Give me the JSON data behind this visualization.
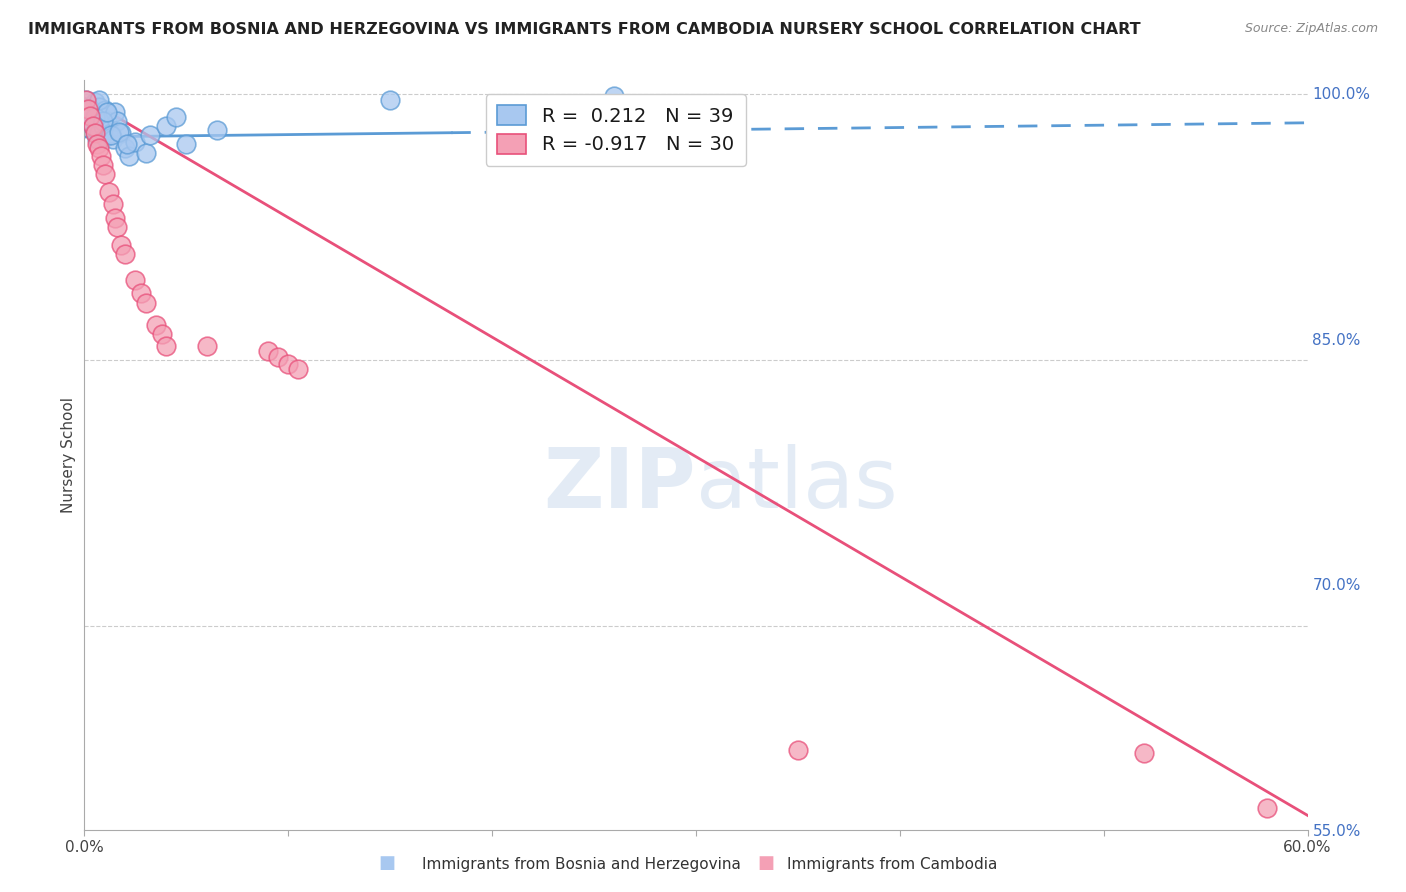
{
  "title": "IMMIGRANTS FROM BOSNIA AND HERZEGOVINA VS IMMIGRANTS FROM CAMBODIA NURSERY SCHOOL CORRELATION CHART",
  "source": "Source: ZipAtlas.com",
  "ylabel_left": "Nursery School",
  "x_min": 0.0,
  "x_max": 0.6,
  "y_min": 0.585,
  "y_max": 1.008,
  "right_yticks": [
    1.0,
    0.85,
    0.7,
    0.55
  ],
  "right_ytick_labels": [
    "100.0%",
    "85.0%",
    "70.0%",
    "55.0%"
  ],
  "bosnia_R": 0.212,
  "bosnia_N": 39,
  "cambodia_R": -0.917,
  "cambodia_N": 30,
  "bosnia_color": "#a8c8f0",
  "cambodia_color": "#f4a0b5",
  "bosnia_line_color": "#5b9bd5",
  "cambodia_line_color": "#e8507a",
  "watermark": "ZIPatlas",
  "bosnia_trend_x": [
    0.0,
    0.6
  ],
  "bosnia_trend_y": [
    0.976,
    0.984
  ],
  "bosnia_trend_solid_end": 0.18,
  "cambodia_trend_x": [
    0.0,
    0.6
  ],
  "cambodia_trend_y": [
    0.998,
    0.593
  ],
  "bosnia_scatter_x": [
    0.002,
    0.003,
    0.004,
    0.005,
    0.005,
    0.006,
    0.007,
    0.007,
    0.008,
    0.009,
    0.01,
    0.01,
    0.011,
    0.012,
    0.013,
    0.014,
    0.015,
    0.016,
    0.018,
    0.02,
    0.022,
    0.025,
    0.03,
    0.001,
    0.003,
    0.005,
    0.007,
    0.009,
    0.011,
    0.013,
    0.017,
    0.021,
    0.032,
    0.15,
    0.26,
    0.04,
    0.045,
    0.05,
    0.065
  ],
  "bosnia_scatter_y": [
    0.988,
    0.985,
    0.982,
    0.979,
    0.996,
    0.975,
    0.993,
    0.978,
    0.988,
    0.982,
    0.976,
    0.991,
    0.985,
    0.98,
    0.978,
    0.975,
    0.99,
    0.985,
    0.978,
    0.97,
    0.965,
    0.973,
    0.967,
    0.997,
    0.992,
    0.987,
    0.997,
    0.985,
    0.99,
    0.977,
    0.979,
    0.972,
    0.977,
    0.997,
    0.999,
    0.982,
    0.987,
    0.972,
    0.98
  ],
  "cambodia_scatter_x": [
    0.001,
    0.002,
    0.003,
    0.004,
    0.005,
    0.006,
    0.007,
    0.008,
    0.009,
    0.01,
    0.012,
    0.014,
    0.015,
    0.016,
    0.018,
    0.02,
    0.025,
    0.028,
    0.03,
    0.035,
    0.038,
    0.04,
    0.06,
    0.09,
    0.095,
    0.1,
    0.105,
    0.35,
    0.52,
    0.58
  ],
  "cambodia_scatter_y": [
    0.997,
    0.992,
    0.988,
    0.982,
    0.978,
    0.972,
    0.97,
    0.965,
    0.96,
    0.955,
    0.945,
    0.938,
    0.93,
    0.925,
    0.915,
    0.91,
    0.895,
    0.888,
    0.882,
    0.87,
    0.865,
    0.858,
    0.858,
    0.855,
    0.852,
    0.848,
    0.845,
    0.63,
    0.628,
    0.597
  ]
}
